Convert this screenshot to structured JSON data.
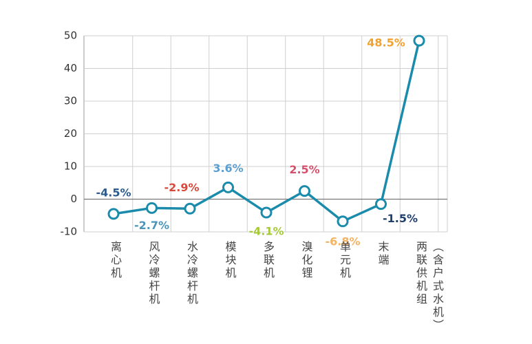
{
  "chart_data": {
    "type": "line",
    "categories": [
      "离心机",
      "风冷螺杆机",
      "水冷螺杆机",
      "模块机",
      "多联机",
      "溴化锂",
      "单元机",
      "末端",
      "两联供机组\n（含户式水机）"
    ],
    "series": [
      {
        "color": "#1b8bab",
        "values": [
          -4.5,
          -2.7,
          -2.9,
          3.6,
          -4.1,
          2.5,
          -6.8,
          -1.5,
          48.5
        ],
        "value_labels": [
          "-4.5%",
          "-2.7%",
          "-2.9%",
          "3.6%",
          "-4.1%",
          "2.5%",
          "-6.8%",
          "-1.5%",
          "48.5%"
        ],
        "label_colors": [
          "#2b5b8c",
          "#4a95b8",
          "#d9483b",
          "#5b9fd0",
          "#a6c93a",
          "#d5506c",
          "#f2b363",
          "#1f3f6e",
          "#f0a22e"
        ]
      }
    ],
    "ylim": [
      -10,
      50
    ],
    "yticks": [
      -10,
      0,
      10,
      20,
      30,
      40,
      50
    ],
    "grid": true
  }
}
